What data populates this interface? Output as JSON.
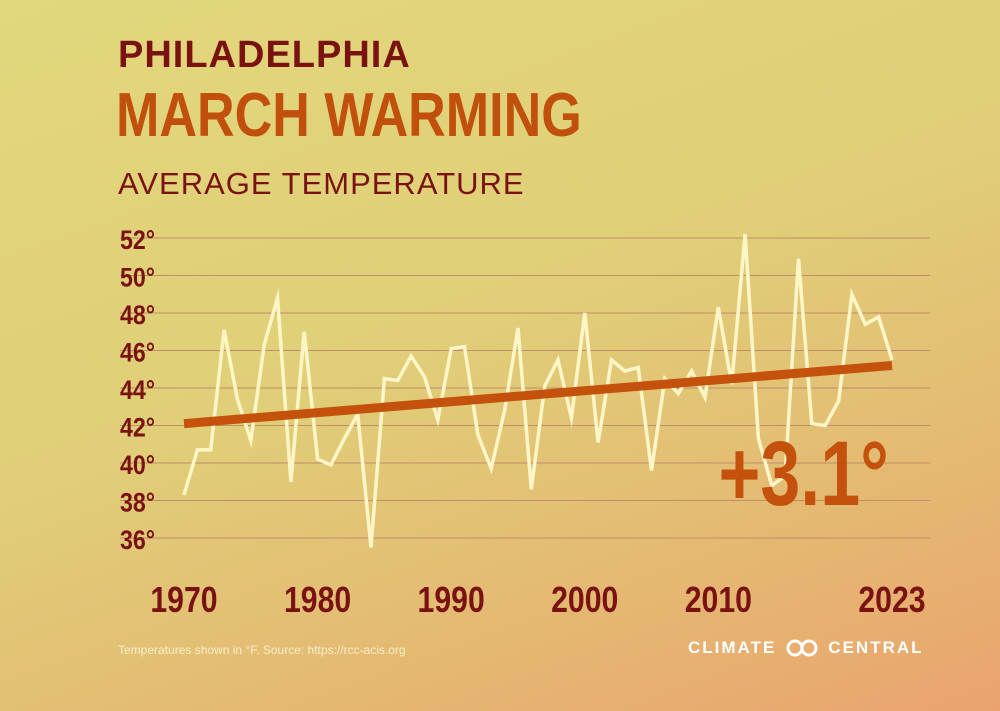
{
  "header": {
    "city": "PHILADELPHIA",
    "title": "MARCH WARMING",
    "subtitle": "AVERAGE TEMPERATURE"
  },
  "chart_data": {
    "type": "line",
    "title": "MARCH WARMING",
    "subtitle": "AVERAGE TEMPERATURE",
    "ylim": [
      35,
      53
    ],
    "xlim": [
      1970,
      2023
    ],
    "y_ticks": [
      {
        "value": 36,
        "label": "36°"
      },
      {
        "value": 38,
        "label": "38°"
      },
      {
        "value": 40,
        "label": "40°"
      },
      {
        "value": 42,
        "label": "42°"
      },
      {
        "value": 44,
        "label": "44°"
      },
      {
        "value": 46,
        "label": "46°"
      },
      {
        "value": 48,
        "label": "48°"
      },
      {
        "value": 50,
        "label": "50°"
      },
      {
        "value": 52,
        "label": "52°"
      }
    ],
    "x_ticks": [
      {
        "value": 1970,
        "label": "1970"
      },
      {
        "value": 1980,
        "label": "1980"
      },
      {
        "value": 1990,
        "label": "1990"
      },
      {
        "value": 2000,
        "label": "2000"
      },
      {
        "value": 2010,
        "label": "2010"
      },
      {
        "value": 2023,
        "label": "2023"
      }
    ],
    "grid": true,
    "series": [
      {
        "color": "#fff6c8",
        "x": [
          1970,
          1971,
          1972,
          1973,
          1974,
          1975,
          1976,
          1977,
          1978,
          1979,
          1980,
          1981,
          1982,
          1983,
          1984,
          1985,
          1986,
          1987,
          1988,
          1989,
          1990,
          1991,
          1992,
          1993,
          1994,
          1995,
          1996,
          1997,
          1998,
          1999,
          2000,
          2001,
          2002,
          2003,
          2004,
          2005,
          2006,
          2007,
          2008,
          2009,
          2010,
          2011,
          2012,
          2013,
          2014,
          2015,
          2016,
          2017,
          2018,
          2019,
          2020,
          2021,
          2022,
          2023
        ],
        "y": [
          38.3,
          40.7,
          40.7,
          47.1,
          43.4,
          41.2,
          46.3,
          48.8,
          39.0,
          47.0,
          40.2,
          39.9,
          41.3,
          42.6,
          35.5,
          44.5,
          44.4,
          45.7,
          44.6,
          42.3,
          46.1,
          46.2,
          41.5,
          39.7,
          42.8,
          47.2,
          38.6,
          44.1,
          45.5,
          42.4,
          48.0,
          41.1,
          45.5,
          44.9,
          45.1,
          39.6,
          44.5,
          43.7,
          44.9,
          43.5,
          48.3,
          44.2,
          52.2,
          41.3,
          38.8,
          39.3,
          50.9,
          42.1,
          42.0,
          43.3,
          49.0,
          47.4,
          47.8,
          45.5
        ]
      },
      {
        "color": "#c4520c",
        "x": [
          1970,
          2023
        ],
        "y": [
          42.1,
          45.2
        ]
      }
    ],
    "annotations": [
      {
        "text": "+3.1°",
        "color": "#c4520c"
      }
    ]
  },
  "footer": {
    "note": "Temperatures shown in °F. Source: https://rcc-acis.org",
    "brand_left": "CLIMATE",
    "brand_right": "CENTRAL"
  },
  "colors": {
    "title_dark": "#7a1212",
    "title_orange": "#c0500c",
    "grid": "#c08d6a",
    "data_line": "#fff6c8",
    "trend_line": "#c4520c"
  }
}
